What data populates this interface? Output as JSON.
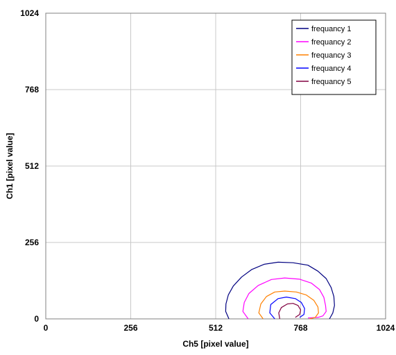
{
  "chart_data": {
    "type": "line",
    "xlabel": "Ch5 [pixel value]",
    "ylabel": "Ch1 [pixel value]",
    "xlim": [
      0,
      1024
    ],
    "ylim": [
      0,
      1024
    ],
    "xticks": [
      0,
      256,
      512,
      768,
      1024
    ],
    "yticks": [
      0,
      256,
      512,
      768,
      1024
    ],
    "grid": true,
    "legend_position": "top-right",
    "series": [
      {
        "name": "frequancy 1",
        "color": "#000080",
        "points": [
          [
            552,
            0
          ],
          [
            542,
            25
          ],
          [
            543,
            50
          ],
          [
            550,
            80
          ],
          [
            565,
            110
          ],
          [
            590,
            140
          ],
          [
            620,
            165
          ],
          [
            658,
            183
          ],
          [
            700,
            190
          ],
          [
            745,
            188
          ],
          [
            790,
            180
          ],
          [
            820,
            160
          ],
          [
            845,
            135
          ],
          [
            860,
            105
          ],
          [
            868,
            75
          ],
          [
            870,
            45
          ],
          [
            865,
            20
          ],
          [
            855,
            0
          ]
        ]
      },
      {
        "name": "frequancy 2",
        "color": "#FF00FF",
        "points": [
          [
            610,
            0
          ],
          [
            594,
            25
          ],
          [
            598,
            55
          ],
          [
            612,
            85
          ],
          [
            640,
            112
          ],
          [
            680,
            132
          ],
          [
            720,
            137
          ],
          [
            765,
            133
          ],
          [
            800,
            120
          ],
          [
            825,
            98
          ],
          [
            838,
            72
          ],
          [
            843,
            45
          ],
          [
            845,
            25
          ],
          [
            835,
            10
          ],
          [
            820,
            5
          ],
          [
            790,
            3
          ]
        ]
      },
      {
        "name": "frequancy 3",
        "color": "#FF8000",
        "points": [
          [
            655,
            0
          ],
          [
            642,
            20
          ],
          [
            648,
            50
          ],
          [
            665,
            75
          ],
          [
            690,
            90
          ],
          [
            720,
            93
          ],
          [
            755,
            90
          ],
          [
            785,
            80
          ],
          [
            808,
            62
          ],
          [
            820,
            40
          ],
          [
            822,
            20
          ],
          [
            812,
            5
          ],
          [
            795,
            0
          ]
        ]
      },
      {
        "name": "frequancy 4",
        "color": "#0000FF",
        "points": [
          [
            690,
            0
          ],
          [
            675,
            20
          ],
          [
            678,
            48
          ],
          [
            700,
            68
          ],
          [
            725,
            73
          ],
          [
            752,
            68
          ],
          [
            770,
            55
          ],
          [
            780,
            35
          ],
          [
            778,
            15
          ],
          [
            765,
            5
          ]
        ]
      },
      {
        "name": "frequancy 5",
        "color": "#800040",
        "points": [
          [
            705,
            0
          ],
          [
            702,
            20
          ],
          [
            710,
            38
          ],
          [
            728,
            50
          ],
          [
            745,
            52
          ],
          [
            760,
            45
          ],
          [
            768,
            30
          ],
          [
            765,
            15
          ],
          [
            752,
            5
          ]
        ]
      }
    ]
  }
}
